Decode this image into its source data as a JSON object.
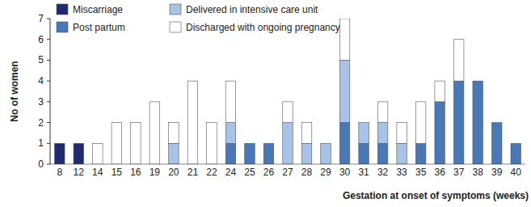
{
  "chart_data": {
    "type": "bar",
    "stacked": true,
    "grid": false,
    "legend": "upper left",
    "x_label": "Gestation at onset of symptoms (weeks)",
    "y_label": "No of women",
    "categories": [
      "8",
      "12",
      "14",
      "15",
      "16",
      "19",
      "20",
      "21",
      "22",
      "24",
      "25",
      "26",
      "27",
      "28",
      "29",
      "30",
      "31",
      "32",
      "33",
      "35",
      "36",
      "37",
      "38",
      "39",
      "40"
    ],
    "ylim": [
      0,
      7
    ],
    "yticks": [
      0,
      1,
      2,
      3,
      4,
      5,
      6,
      7
    ],
    "series": [
      {
        "name": "Miscarriage",
        "color": "#222a6e",
        "values": [
          1,
          1,
          0,
          0,
          0,
          0,
          0,
          0,
          0,
          0,
          0,
          0,
          0,
          0,
          0,
          0,
          0,
          0,
          0,
          0,
          0,
          0,
          0,
          0,
          0
        ]
      },
      {
        "name": "Post partum",
        "color": "#4a78b6",
        "values": [
          0,
          0,
          0,
          0,
          0,
          0,
          0,
          0,
          0,
          1,
          1,
          1,
          0,
          0,
          0,
          2,
          1,
          1,
          0,
          1,
          3,
          4,
          4,
          2,
          1
        ]
      },
      {
        "name": "Delivered in intensive care unit",
        "color": "#a8c3e5",
        "values": [
          0,
          0,
          0,
          0,
          0,
          0,
          1,
          0,
          0,
          1,
          0,
          0,
          2,
          1,
          1,
          3,
          1,
          1,
          1,
          0,
          0,
          0,
          0,
          0,
          0
        ]
      },
      {
        "name": "Discharged with ongoing pregnancy",
        "color": "#ffffff",
        "values": [
          0,
          0,
          1,
          2,
          2,
          3,
          1,
          4,
          2,
          2,
          0,
          0,
          1,
          1,
          0,
          2,
          0,
          1,
          1,
          2,
          1,
          2,
          0,
          0,
          0
        ]
      }
    ]
  }
}
